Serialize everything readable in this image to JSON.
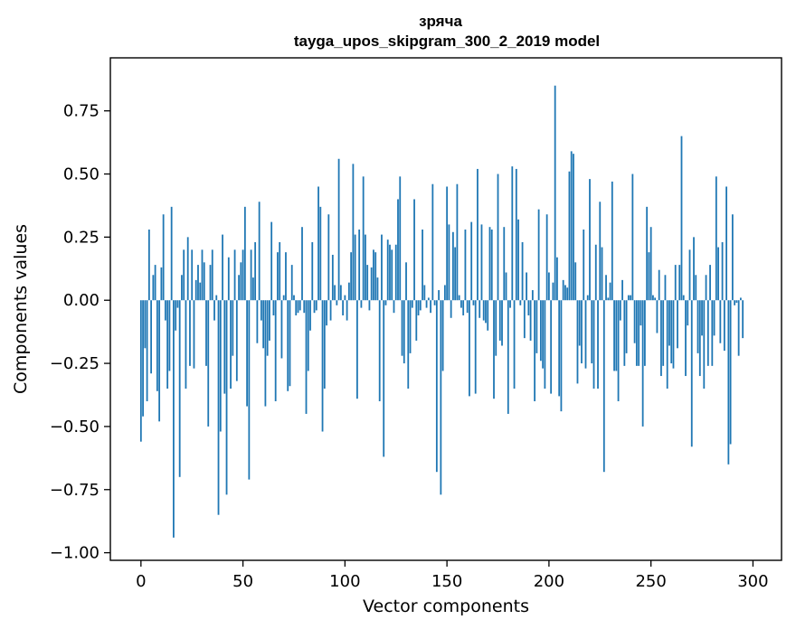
{
  "chart_data": {
    "type": "bar",
    "title": "зряча",
    "subtitle": "tayga_upos_skipgram_300_2_2019 model",
    "xlabel": "Vector components",
    "ylabel": "Components values",
    "xlim": [
      -15,
      314
    ],
    "ylim": [
      -1.03,
      0.96
    ],
    "xticks": [
      0,
      50,
      100,
      150,
      200,
      250,
      300
    ],
    "yticks": [
      -1.0,
      -0.75,
      -0.5,
      -0.25,
      0.0,
      0.25,
      0.5,
      0.75
    ],
    "xtick_labels": [
      "0",
      "50",
      "100",
      "150",
      "200",
      "250",
      "300"
    ],
    "ytick_labels": [
      "−1.00",
      "−0.75",
      "−0.50",
      "−0.25",
      "0.00",
      "0.25",
      "0.50",
      "0.75"
    ],
    "bar_color": "#1f77b4",
    "grid": false,
    "legend": "none",
    "x": "0..299 (component index)",
    "values": [
      -0.56,
      -0.46,
      -0.19,
      -0.4,
      0.28,
      -0.29,
      0.1,
      0.14,
      -0.36,
      -0.48,
      0.13,
      0.34,
      -0.08,
      -0.35,
      -0.28,
      0.37,
      -0.94,
      -0.12,
      -0.03,
      -0.7,
      0.1,
      0.2,
      -0.35,
      0.25,
      -0.26,
      0.2,
      -0.27,
      0.08,
      0.14,
      0.07,
      0.2,
      0.15,
      -0.26,
      -0.5,
      0.14,
      0.2,
      -0.08,
      0.02,
      -0.85,
      -0.52,
      0.26,
      -0.37,
      -0.77,
      0.17,
      -0.35,
      -0.22,
      0.2,
      -0.32,
      0.1,
      0.15,
      0.2,
      0.37,
      -0.42,
      -0.71,
      0.2,
      0.09,
      0.23,
      -0.17,
      0.39,
      -0.08,
      -0.19,
      -0.42,
      -0.22,
      -0.16,
      0.31,
      -0.06,
      -0.4,
      0.19,
      0.23,
      -0.23,
      0.02,
      0.19,
      -0.36,
      -0.34,
      0.14,
      0.02,
      -0.06,
      -0.05,
      -0.04,
      0.29,
      -0.05,
      -0.45,
      -0.28,
      -0.12,
      0.23,
      -0.05,
      -0.04,
      0.45,
      0.37,
      -0.52,
      -0.35,
      -0.1,
      0.34,
      -0.08,
      0.18,
      0.06,
      -0.02,
      0.56,
      0.06,
      -0.06,
      0.02,
      -0.08,
      0.07,
      0.19,
      0.54,
      0.26,
      -0.39,
      0.28,
      -0.03,
      0.49,
      0.26,
      0.14,
      -0.04,
      0.13,
      0.2,
      0.19,
      0.09,
      -0.4,
      0.26,
      -0.62,
      -0.02,
      0.24,
      0.22,
      0.2,
      -0.05,
      0.22,
      0.4,
      0.49,
      -0.22,
      -0.25,
      0.15,
      -0.35,
      -0.21,
      -0.03,
      0.4,
      -0.16,
      -0.06,
      -0.04,
      0.28,
      0.06,
      -0.03,
      0.01,
      -0.05,
      0.46,
      -0.02,
      -0.68,
      0.04,
      -0.77,
      -0.28,
      0.06,
      0.45,
      0.3,
      -0.07,
      0.27,
      0.21,
      0.46,
      0.02,
      -0.03,
      -0.06,
      0.28,
      -0.05,
      -0.38,
      0.31,
      -0.02,
      -0.37,
      0.52,
      -0.07,
      0.3,
      -0.08,
      -0.09,
      -0.12,
      0.29,
      0.28,
      -0.39,
      -0.22,
      0.5,
      -0.16,
      -0.18,
      0.29,
      0.11,
      -0.45,
      -0.03,
      0.53,
      -0.35,
      0.52,
      0.32,
      -0.02,
      0.23,
      -0.15,
      0.11,
      -0.06,
      -0.16,
      0.04,
      -0.4,
      -0.21,
      0.36,
      -0.24,
      -0.27,
      -0.35,
      0.34,
      0.11,
      -0.37,
      0.07,
      0.85,
      0.17,
      -0.38,
      -0.44,
      0.08,
      0.06,
      0.05,
      0.51,
      0.59,
      0.58,
      0.15,
      -0.33,
      -0.18,
      -0.25,
      0.28,
      -0.27,
      0.02,
      0.48,
      -0.25,
      -0.35,
      0.22,
      -0.35,
      0.39,
      0.21,
      -0.68,
      0.1,
      0.01,
      0.07,
      0.47,
      -0.28,
      -0.28,
      -0.4,
      -0.08,
      0.08,
      -0.26,
      -0.21,
      0.02,
      0.02,
      0.5,
      -0.17,
      -0.26,
      -0.26,
      -0.1,
      -0.5,
      -0.26,
      0.37,
      0.19,
      0.29,
      0.02,
      0.01,
      -0.13,
      0.12,
      -0.3,
      -0.26,
      0.1,
      -0.35,
      -0.18,
      -0.25,
      -0.27,
      0.14,
      -0.19,
      0.14,
      0.65,
      0.02,
      -0.3,
      -0.1,
      0.2,
      -0.58,
      0.25,
      0.1,
      -0.21,
      -0.3,
      -0.14,
      -0.35,
      0.1,
      -0.26,
      0.14,
      -0.26,
      -0.14,
      0.49,
      0.21,
      -0.17,
      0.23,
      -0.2,
      0.45,
      -0.65,
      -0.57,
      0.34,
      -0.02,
      -0.01,
      -0.22,
      0.01,
      -0.15
    ]
  }
}
